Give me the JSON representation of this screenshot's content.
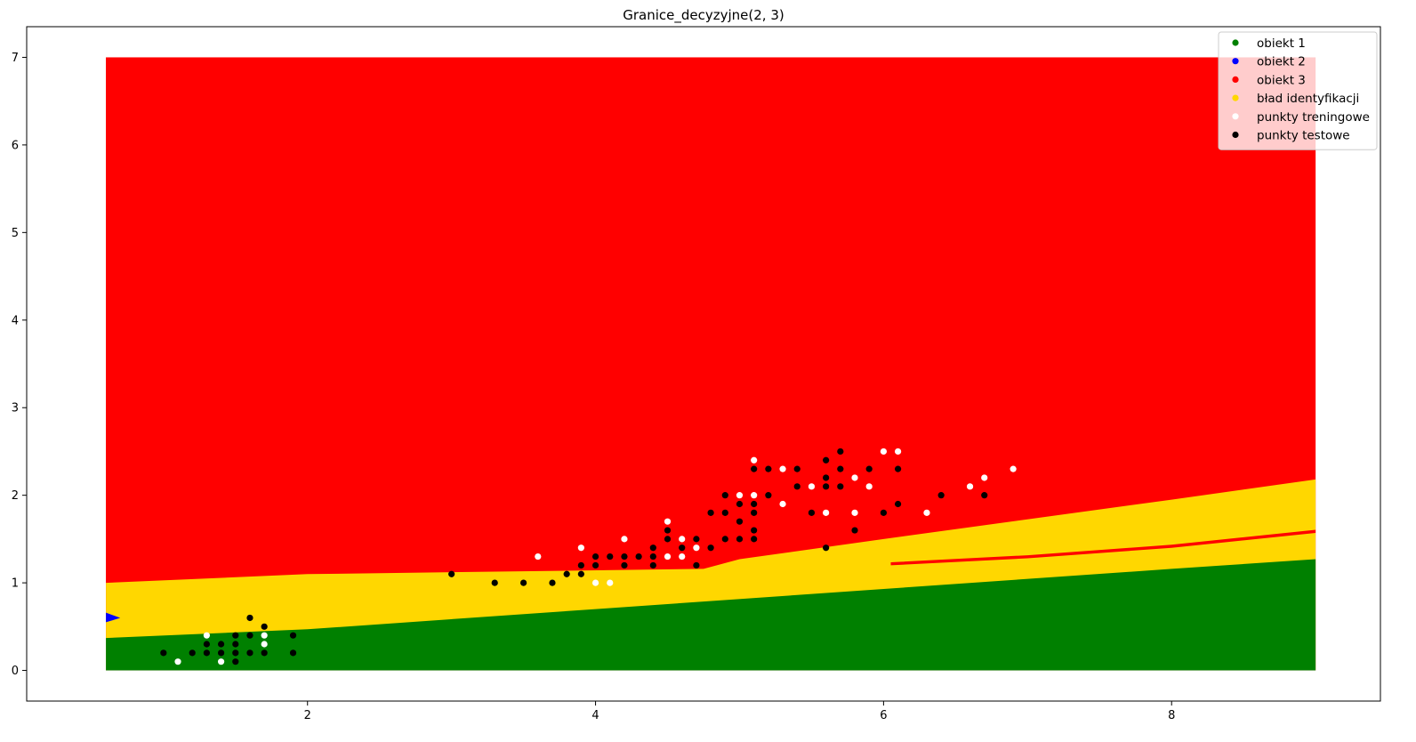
{
  "chart_data": {
    "type": "scatter",
    "title": "Granice_decyzyjne(2, 3)",
    "xlabel": "",
    "ylabel": "",
    "xlim": [
      0.05,
      9.45
    ],
    "ylim": [
      -0.35,
      7.35
    ],
    "xticks": [
      2,
      4,
      6,
      8
    ],
    "yticks": [
      0,
      1,
      2,
      3,
      4,
      5,
      6,
      7
    ],
    "grid": false,
    "legend_position": "top-right",
    "colors": {
      "obiekt_1": "#008000",
      "obiekt_2": "#0000ff",
      "obiekt_3": "#ff0000",
      "blad": "#ffd700",
      "treningowe": "#ffffff",
      "testowe": "#000000"
    },
    "legend": [
      {
        "label": "obiekt 1",
        "color": "#008000"
      },
      {
        "label": "obiekt 2",
        "color": "#0000ff"
      },
      {
        "label": "obiekt 3",
        "color": "#ff0000"
      },
      {
        "label": "bład identyfikacji",
        "color": "#ffd700"
      },
      {
        "label": "punkty treningowe",
        "color": "#ffffff"
      },
      {
        "label": "punkty testowe",
        "color": "#000000"
      }
    ],
    "regions": {
      "x_range": [
        0.6,
        9.0
      ],
      "y_range": [
        0.0,
        7.0
      ],
      "boundary_green_top": [
        [
          0.6,
          0.37
        ],
        [
          2.0,
          0.47
        ],
        [
          4.0,
          0.7
        ],
        [
          6.0,
          0.93
        ],
        [
          8.0,
          1.16
        ],
        [
          9.0,
          1.27
        ]
      ],
      "boundary_yellow_top": [
        [
          0.6,
          1.0
        ],
        [
          2.0,
          1.1
        ],
        [
          4.75,
          1.16
        ],
        [
          5.0,
          1.27
        ],
        [
          6.0,
          1.5
        ],
        [
          8.0,
          1.95
        ],
        [
          9.0,
          2.18
        ]
      ],
      "misclassified_red_band": [
        [
          6.05,
          1.2
        ],
        [
          7.0,
          1.28
        ],
        [
          8.0,
          1.4
        ],
        [
          9.0,
          1.57
        ]
      ],
      "class2_spike": [
        [
          0.6,
          0.55
        ],
        [
          0.7,
          0.6
        ],
        [
          0.6,
          0.66
        ]
      ]
    },
    "series": [
      {
        "name": "punkty treningowe",
        "color": "#ffffff",
        "points": [
          [
            1.1,
            0.1
          ],
          [
            1.3,
            0.4
          ],
          [
            1.4,
            0.1
          ],
          [
            1.7,
            0.4
          ],
          [
            1.7,
            0.3
          ],
          [
            3.6,
            1.3
          ],
          [
            3.9,
            1.4
          ],
          [
            4.0,
            1.0
          ],
          [
            4.1,
            1.0
          ],
          [
            4.2,
            1.5
          ],
          [
            4.5,
            1.3
          ],
          [
            4.5,
            1.7
          ],
          [
            4.6,
            1.5
          ],
          [
            4.6,
            1.3
          ],
          [
            4.7,
            1.4
          ],
          [
            5.0,
            2.0
          ],
          [
            5.1,
            2.4
          ],
          [
            5.1,
            2.0
          ],
          [
            5.3,
            2.3
          ],
          [
            5.3,
            1.9
          ],
          [
            5.5,
            2.1
          ],
          [
            5.6,
            1.8
          ],
          [
            5.8,
            2.2
          ],
          [
            5.8,
            1.8
          ],
          [
            5.9,
            2.1
          ],
          [
            6.0,
            2.5
          ],
          [
            6.1,
            2.5
          ],
          [
            6.3,
            1.8
          ],
          [
            6.6,
            2.1
          ],
          [
            6.7,
            2.2
          ],
          [
            6.9,
            2.3
          ]
        ]
      },
      {
        "name": "punkty testowe",
        "color": "#000000",
        "points": [
          [
            1.0,
            0.2
          ],
          [
            1.2,
            0.2
          ],
          [
            1.3,
            0.2
          ],
          [
            1.3,
            0.3
          ],
          [
            1.4,
            0.2
          ],
          [
            1.4,
            0.3
          ],
          [
            1.5,
            0.1
          ],
          [
            1.5,
            0.2
          ],
          [
            1.5,
            0.3
          ],
          [
            1.5,
            0.4
          ],
          [
            1.6,
            0.2
          ],
          [
            1.6,
            0.4
          ],
          [
            1.6,
            0.6
          ],
          [
            1.7,
            0.2
          ],
          [
            1.7,
            0.5
          ],
          [
            1.9,
            0.2
          ],
          [
            1.9,
            0.4
          ],
          [
            3.0,
            1.1
          ],
          [
            3.3,
            1.0
          ],
          [
            3.5,
            1.0
          ],
          [
            3.7,
            1.0
          ],
          [
            3.8,
            1.1
          ],
          [
            3.9,
            1.1
          ],
          [
            3.9,
            1.2
          ],
          [
            4.0,
            1.2
          ],
          [
            4.0,
            1.3
          ],
          [
            4.1,
            1.3
          ],
          [
            4.2,
            1.2
          ],
          [
            4.2,
            1.3
          ],
          [
            4.3,
            1.3
          ],
          [
            4.4,
            1.2
          ],
          [
            4.4,
            1.3
          ],
          [
            4.4,
            1.4
          ],
          [
            4.5,
            1.5
          ],
          [
            4.5,
            1.6
          ],
          [
            4.6,
            1.4
          ],
          [
            4.7,
            1.2
          ],
          [
            4.7,
            1.5
          ],
          [
            4.8,
            1.4
          ],
          [
            4.8,
            1.8
          ],
          [
            4.9,
            1.5
          ],
          [
            4.9,
            1.8
          ],
          [
            4.9,
            2.0
          ],
          [
            5.0,
            1.5
          ],
          [
            5.0,
            1.7
          ],
          [
            5.0,
            1.9
          ],
          [
            5.1,
            1.5
          ],
          [
            5.1,
            1.6
          ],
          [
            5.1,
            1.8
          ],
          [
            5.1,
            1.9
          ],
          [
            5.1,
            2.3
          ],
          [
            5.2,
            2.0
          ],
          [
            5.2,
            2.3
          ],
          [
            5.4,
            2.1
          ],
          [
            5.4,
            2.3
          ],
          [
            5.5,
            1.8
          ],
          [
            5.6,
            1.4
          ],
          [
            5.6,
            2.1
          ],
          [
            5.6,
            2.2
          ],
          [
            5.6,
            2.4
          ],
          [
            5.7,
            2.1
          ],
          [
            5.7,
            2.3
          ],
          [
            5.7,
            2.5
          ],
          [
            5.8,
            1.6
          ],
          [
            5.9,
            2.3
          ],
          [
            6.0,
            1.8
          ],
          [
            6.1,
            1.9
          ],
          [
            6.1,
            2.3
          ],
          [
            6.4,
            2.0
          ],
          [
            6.7,
            2.0
          ]
        ]
      }
    ]
  }
}
